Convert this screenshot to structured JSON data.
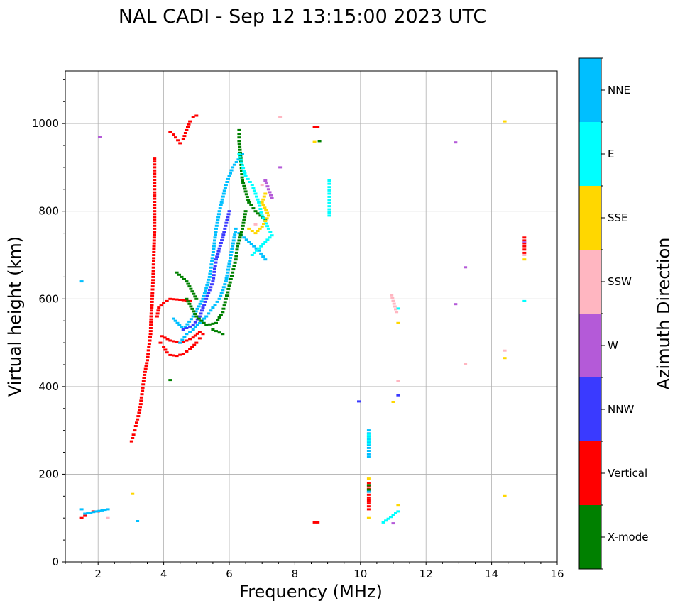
{
  "chart_data": {
    "type": "scatter",
    "title": "NAL CADI - Sep 12 13:15:00 2023 UTC",
    "xlabel": "Frequency (MHz)",
    "ylabel": "Virtual height (km)",
    "xlim": [
      1,
      16
    ],
    "ylim": [
      0,
      1120
    ],
    "xticks": [
      2,
      4,
      6,
      8,
      10,
      12,
      14,
      16
    ],
    "yticks": [
      0,
      200,
      400,
      600,
      800,
      1000
    ],
    "grid": true,
    "colorbar": {
      "label": "Azimuth Direction",
      "categories": [
        {
          "name": "X-mode",
          "color": "#008000"
        },
        {
          "name": "Vertical",
          "color": "#ff0000"
        },
        {
          "name": "NNW",
          "color": "#3a3aff"
        },
        {
          "name": "W",
          "color": "#b45ad8"
        },
        {
          "name": "SSW",
          "color": "#ffb6c1"
        },
        {
          "name": "SSE",
          "color": "#ffd700"
        },
        {
          "name": "E",
          "color": "#00ffff"
        },
        {
          "name": "NNE",
          "color": "#00bfff"
        }
      ]
    },
    "segments": [
      {
        "category": "Vertical",
        "points": [
          [
            3.02,
            275
          ],
          [
            3.08,
            290
          ],
          [
            3.12,
            300
          ],
          [
            3.15,
            310
          ],
          [
            3.2,
            325
          ],
          [
            3.25,
            340
          ],
          [
            3.3,
            360
          ],
          [
            3.35,
            390
          ],
          [
            3.4,
            420
          ],
          [
            3.45,
            440
          ],
          [
            3.5,
            460
          ],
          [
            3.55,
            490
          ],
          [
            3.6,
            520
          ],
          [
            3.62,
            560
          ],
          [
            3.65,
            600
          ],
          [
            3.68,
            650
          ],
          [
            3.7,
            700
          ],
          [
            3.72,
            760
          ],
          [
            3.72,
            800
          ],
          [
            3.72,
            850
          ],
          [
            3.72,
            900
          ],
          [
            3.72,
            920
          ]
        ]
      },
      {
        "category": "Vertical",
        "points": [
          [
            3.8,
            560
          ],
          [
            3.85,
            580
          ],
          [
            4.0,
            590
          ],
          [
            4.2,
            600
          ],
          [
            4.5,
            598
          ],
          [
            4.8,
            595
          ]
        ]
      },
      {
        "category": "Vertical",
        "points": [
          [
            3.9,
            500
          ],
          [
            4.0,
            490
          ],
          [
            4.1,
            478
          ],
          [
            4.2,
            472
          ],
          [
            4.4,
            470
          ],
          [
            4.6,
            475
          ],
          [
            4.8,
            485
          ],
          [
            5.0,
            500
          ],
          [
            5.1,
            510
          ],
          [
            5.2,
            520
          ]
        ]
      },
      {
        "category": "Vertical",
        "points": [
          [
            3.95,
            515
          ],
          [
            4.2,
            505
          ],
          [
            4.5,
            500
          ],
          [
            4.7,
            505
          ],
          [
            4.9,
            512
          ],
          [
            5.1,
            525
          ]
        ]
      },
      {
        "category": "Vertical",
        "points": [
          [
            4.2,
            980
          ],
          [
            4.3,
            975
          ],
          [
            4.5,
            955
          ],
          [
            4.6,
            965
          ],
          [
            4.7,
            985
          ],
          [
            4.8,
            1005
          ],
          [
            4.9,
            1015
          ],
          [
            5.0,
            1018
          ]
        ]
      },
      {
        "category": "Vertical",
        "points": [
          [
            1.5,
            100
          ],
          [
            1.6,
            105
          ],
          [
            1.7,
            112
          ],
          [
            1.85,
            115
          ],
          [
            2.0,
            115
          ]
        ]
      },
      {
        "category": "Vertical",
        "points": [
          [
            8.6,
            993
          ],
          [
            8.7,
            993
          ],
          [
            8.6,
            90
          ],
          [
            8.7,
            90
          ],
          [
            10.25,
            120
          ],
          [
            10.25,
            180
          ]
        ]
      },
      {
        "category": "Vertical",
        "points": [
          [
            15.0,
            740
          ],
          [
            15.0,
            720
          ],
          [
            15.0,
            705
          ]
        ]
      },
      {
        "category": "NNE",
        "points": [
          [
            4.5,
            500
          ],
          [
            4.7,
            520
          ],
          [
            4.9,
            530
          ],
          [
            5.1,
            545
          ],
          [
            5.3,
            560
          ],
          [
            5.5,
            580
          ],
          [
            5.7,
            600
          ],
          [
            5.9,
            640
          ],
          [
            6.0,
            680
          ],
          [
            6.1,
            720
          ],
          [
            6.2,
            760
          ]
        ]
      },
      {
        "category": "NNE",
        "points": [
          [
            4.3,
            555
          ],
          [
            4.6,
            530
          ],
          [
            4.9,
            560
          ],
          [
            5.2,
            600
          ],
          [
            5.4,
            650
          ],
          [
            5.5,
            700
          ],
          [
            5.6,
            760
          ],
          [
            5.7,
            800
          ],
          [
            5.9,
            860
          ],
          [
            6.1,
            900
          ],
          [
            6.4,
            930
          ]
        ]
      },
      {
        "category": "NNE",
        "points": [
          [
            6.3,
            750
          ],
          [
            6.6,
            730
          ],
          [
            6.9,
            710
          ],
          [
            7.1,
            690
          ]
        ]
      },
      {
        "category": "NNE",
        "points": [
          [
            10.25,
            300
          ],
          [
            10.25,
            240
          ],
          [
            10.25,
            160
          ]
        ]
      },
      {
        "category": "NNW",
        "points": [
          [
            4.6,
            530
          ],
          [
            4.9,
            540
          ],
          [
            5.1,
            560
          ],
          [
            5.3,
            600
          ],
          [
            5.5,
            640
          ],
          [
            5.6,
            690
          ],
          [
            5.8,
            740
          ],
          [
            6.0,
            800
          ]
        ]
      },
      {
        "category": "NNW",
        "points": [
          [
            9.95,
            366
          ],
          [
            11.15,
            380
          ]
        ]
      },
      {
        "category": "X-mode",
        "points": [
          [
            4.7,
            600
          ],
          [
            5.0,
            560
          ],
          [
            5.3,
            540
          ],
          [
            5.6,
            545
          ],
          [
            5.8,
            570
          ],
          [
            5.9,
            600
          ],
          [
            6.0,
            630
          ],
          [
            6.1,
            660
          ],
          [
            6.2,
            690
          ],
          [
            6.25,
            720
          ],
          [
            6.4,
            760
          ],
          [
            6.5,
            800
          ]
        ]
      },
      {
        "category": "X-mode",
        "points": [
          [
            4.4,
            660
          ],
          [
            4.7,
            640
          ],
          [
            5.0,
            600
          ],
          [
            5.5,
            530
          ],
          [
            5.8,
            520
          ]
        ]
      },
      {
        "category": "X-mode",
        "points": [
          [
            6.3,
            985
          ],
          [
            6.3,
            960
          ],
          [
            6.35,
            920
          ],
          [
            6.4,
            870
          ],
          [
            6.6,
            820
          ],
          [
            6.8,
            800
          ],
          [
            7.1,
            780
          ]
        ]
      },
      {
        "category": "X-mode",
        "points": [
          [
            4.2,
            415
          ],
          [
            8.75,
            960
          ],
          [
            10.25,
            175
          ],
          [
            10.25,
            165
          ]
        ]
      },
      {
        "category": "E",
        "points": [
          [
            6.3,
            930
          ],
          [
            6.5,
            880
          ],
          [
            6.7,
            860
          ],
          [
            6.9,
            820
          ],
          [
            7.0,
            790
          ],
          [
            7.2,
            760
          ],
          [
            7.3,
            745
          ],
          [
            6.7,
            700
          ]
        ]
      },
      {
        "category": "E",
        "points": [
          [
            9.05,
            870
          ],
          [
            9.05,
            840
          ],
          [
            9.05,
            790
          ],
          [
            10.25,
            290
          ],
          [
            10.25,
            270
          ],
          [
            10.7,
            90
          ],
          [
            11.15,
            115
          ],
          [
            11.15,
            578
          ],
          [
            15.0,
            595
          ]
        ]
      },
      {
        "category": "SSE",
        "points": [
          [
            6.6,
            760
          ],
          [
            6.8,
            750
          ],
          [
            7.0,
            765
          ],
          [
            7.2,
            790
          ],
          [
            7.0,
            820
          ],
          [
            7.1,
            840
          ]
        ]
      },
      {
        "category": "SSE",
        "points": [
          [
            8.6,
            958
          ],
          [
            10.25,
            100
          ],
          [
            10.25,
            190
          ],
          [
            11.0,
            365
          ],
          [
            11.15,
            545
          ],
          [
            11.15,
            130
          ],
          [
            3.05,
            155
          ],
          [
            14.4,
            465
          ],
          [
            14.4,
            150
          ],
          [
            14.4,
            1005
          ],
          [
            15.0,
            690
          ]
        ]
      },
      {
        "category": "SSW",
        "points": [
          [
            6.8,
            770
          ],
          [
            7.0,
            860
          ],
          [
            7.55,
            1015
          ],
          [
            10.95,
            608
          ],
          [
            11.1,
            570
          ],
          [
            11.15,
            412
          ],
          [
            13.2,
            452
          ],
          [
            14.4,
            482
          ],
          [
            15.0,
            700
          ],
          [
            2.3,
            100
          ]
        ]
      },
      {
        "category": "W",
        "points": [
          [
            2.05,
            970
          ],
          [
            7.1,
            870
          ],
          [
            7.3,
            830
          ],
          [
            7.55,
            900
          ],
          [
            11.0,
            88
          ],
          [
            12.9,
            957
          ],
          [
            12.9,
            588
          ],
          [
            13.2,
            672
          ],
          [
            15.0,
            730
          ]
        ]
      },
      {
        "category": "NNE",
        "points": [
          [
            1.5,
            640
          ],
          [
            1.5,
            120
          ],
          [
            1.6,
            110
          ],
          [
            2.3,
            120
          ],
          [
            3.2,
            93
          ]
        ]
      }
    ]
  }
}
